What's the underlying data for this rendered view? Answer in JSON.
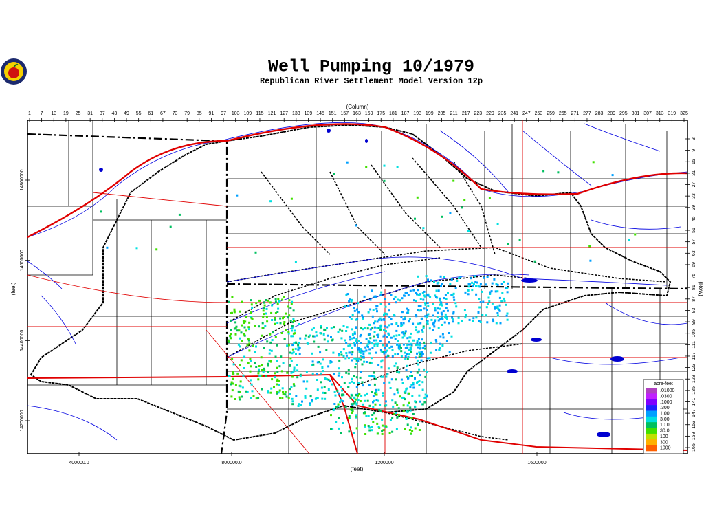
{
  "map": {
    "title": "Well Pumping 10/1979",
    "subtitle": "Republican River Settlement Model Version 12p",
    "column_axis": {
      "label": "(Column)",
      "ticks": [
        1,
        7,
        13,
        19,
        25,
        31,
        37,
        43,
        49,
        55,
        61,
        67,
        73,
        79,
        85,
        91,
        97,
        103,
        109,
        115,
        121,
        127,
        133,
        139,
        145,
        151,
        157,
        163,
        169,
        175,
        181,
        187,
        193,
        199,
        205,
        211,
        217,
        223,
        229,
        235,
        241,
        247,
        253,
        259,
        265,
        271,
        277,
        283,
        289,
        295,
        301,
        307,
        313,
        319,
        325
      ]
    },
    "row_axis": {
      "label": "(Row)",
      "ticks": [
        3,
        9,
        15,
        21,
        27,
        33,
        39,
        45,
        51,
        57,
        63,
        69,
        75,
        81,
        87,
        93,
        99,
        105,
        111,
        117,
        123,
        129,
        135,
        141,
        147,
        153,
        159,
        165
      ]
    },
    "x_feet_axis": {
      "label": "(feet)",
      "ticks": [
        {
          "value": 400000,
          "label": "400000.0"
        },
        {
          "value": 800000,
          "label": "800000.0"
        },
        1200000,
        1600000
      ]
    },
    "y_feet_axis": {
      "label": "(feet)",
      "ticks": [
        14800000,
        14600000,
        14400000,
        14200000
      ]
    },
    "legend": {
      "title": "acre-feet",
      "entries": [
        {
          "label": ".01000",
          "color": "#b040c0"
        },
        {
          "label": ".0300",
          "color": "#c020ff"
        },
        {
          "label": ".1000",
          "color": "#8000ff"
        },
        {
          "label": ".300",
          "color": "#2020ff"
        },
        {
          "label": "1.00",
          "color": "#00a0ff"
        },
        {
          "label": "3.00",
          "color": "#00e0e0"
        },
        {
          "label": "10.0",
          "color": "#00c060"
        },
        {
          "label": "30.0",
          "color": "#40e000"
        },
        {
          "label": "100",
          "color": "#c0e000"
        },
        {
          "label": "300",
          "color": "#ffb000"
        },
        {
          "label": "1000",
          "color": "#ff6000"
        }
      ]
    }
  }
}
